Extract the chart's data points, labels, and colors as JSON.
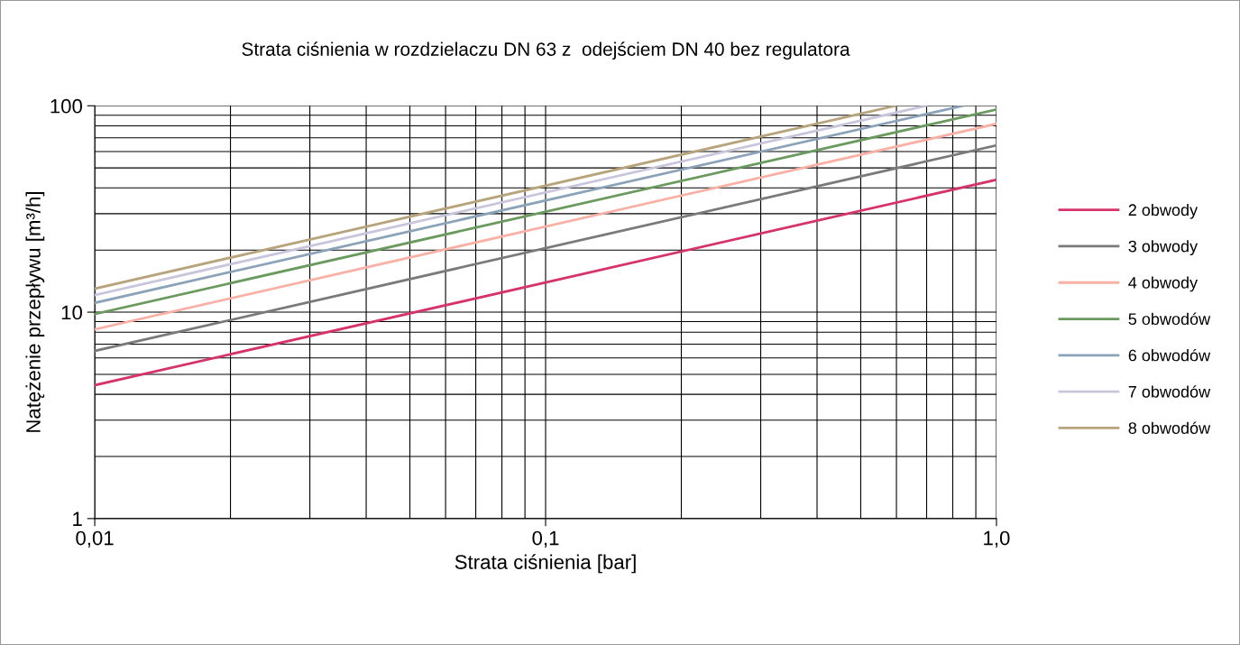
{
  "chart_data": {
    "type": "line",
    "title": "Strata ciśnienia w rozdzielaczu DN 63 z  odejściem DN 40 bez regulatora",
    "xlabel": "Strata ciśnienia [bar]",
    "ylabel": "Natężenie przepływu [m³/h]",
    "log": "xy",
    "grid": true,
    "legend": "right",
    "marker": "none",
    "line_style": "solid",
    "xlim": [
      0.01,
      1.0
    ],
    "ylim": [
      1,
      100
    ],
    "xticks": [
      {
        "value": 0.01,
        "label": "0,01"
      },
      {
        "value": 0.1,
        "label": "0,1"
      },
      {
        "value": 1.0,
        "label": "1,0"
      }
    ],
    "yticks": [
      1,
      10,
      100
    ],
    "series": [
      {
        "name": "2 obwody",
        "color": "#d6336c",
        "x": [
          0.01,
          1.0
        ],
        "values": [
          4.43,
          43.8
        ]
      },
      {
        "name": "3 obwody",
        "color": "#7a7a7a",
        "x": [
          0.01,
          1.0
        ],
        "values": [
          6.49,
          64.3
        ]
      },
      {
        "name": "4 obwody",
        "color": "#f9b0a5",
        "x": [
          0.01,
          1.0
        ],
        "values": [
          8.26,
          81.8
        ]
      },
      {
        "name": "5 obwodów",
        "color": "#6a9a5e",
        "x": [
          0.01,
          1.0
        ],
        "values": [
          9.8,
          96
        ]
      },
      {
        "name": "6 obwodów",
        "color": "#8aa3b8",
        "x": [
          0.01,
          0.843
        ],
        "values": [
          11.1,
          100
        ]
      },
      {
        "name": "7 obwodów",
        "color": "#c8c5dc",
        "x": [
          0.01,
          0.698
        ],
        "values": [
          12.1,
          100
        ]
      },
      {
        "name": "8 obwodów",
        "color": "#b8a47c",
        "x": [
          0.01,
          0.597
        ],
        "values": [
          13.0,
          100
        ]
      }
    ]
  }
}
